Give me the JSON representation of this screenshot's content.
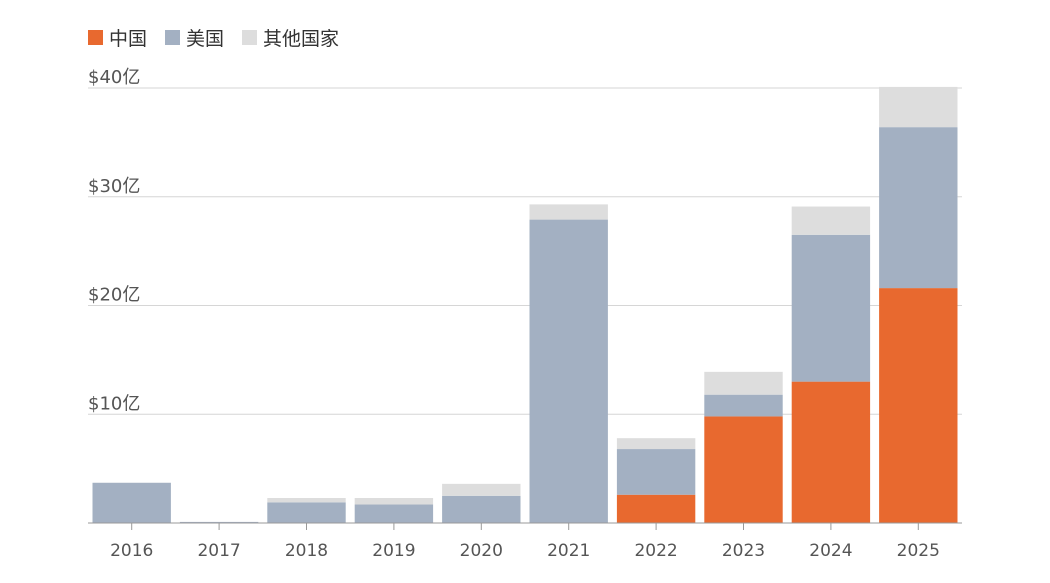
{
  "chart_data": {
    "type": "bar",
    "stacked": true,
    "categories": [
      "2016",
      "2017",
      "2018",
      "2019",
      "2020",
      "2021",
      "2022",
      "2023",
      "2024",
      "2025"
    ],
    "series": [
      {
        "name": "中国",
        "color": "#e8692f",
        "values": [
          0,
          0,
          0,
          0,
          0,
          0,
          2.6,
          9.8,
          13.0,
          21.6
        ]
      },
      {
        "name": "美国",
        "color": "#a3b0c2",
        "values": [
          3.7,
          0.1,
          1.9,
          1.7,
          2.5,
          27.9,
          4.2,
          2.0,
          13.5,
          14.8
        ]
      },
      {
        "name": "其他国家",
        "color": "#dddddd",
        "values": [
          0,
          0,
          0.4,
          0.6,
          1.1,
          1.4,
          1.0,
          2.1,
          2.6,
          3.7
        ]
      }
    ],
    "yticks": [
      {
        "value": 10,
        "label": "$10亿"
      },
      {
        "value": 20,
        "label": "$20亿"
      },
      {
        "value": 30,
        "label": "$30亿"
      },
      {
        "value": 40,
        "label": "$40亿"
      }
    ],
    "ylim": [
      0,
      40
    ],
    "grid": true,
    "legend": "top-left"
  }
}
